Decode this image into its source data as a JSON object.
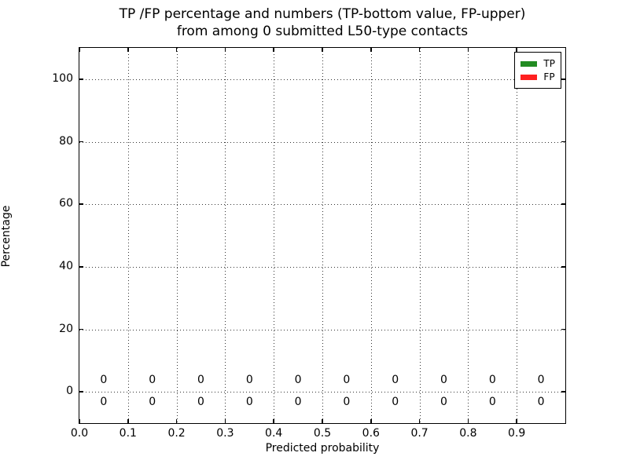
{
  "figure": {
    "background": "#ffffff",
    "title_line1": "TP /FP percentage and numbers (TP-bottom value, FP-upper)",
    "title_line2": "from among 0 submitted L50-type contacts"
  },
  "chart_data": {
    "type": "bar",
    "title": "TP /FP percentage and numbers (TP-bottom value, FP-upper) from among 0 submitted L50-type contacts",
    "xlabel": "Predicted probability",
    "ylabel": "Percentage",
    "xlim": [
      0.0,
      1.0
    ],
    "ylim": [
      -10,
      110
    ],
    "grid": true,
    "grid_style": "dotted",
    "legend_position": "upper right",
    "frame_color": "#000000",
    "text_color": "#000000",
    "x_ticks": [
      {
        "value": 0.0,
        "label": "0.0"
      },
      {
        "value": 0.1,
        "label": "0.1"
      },
      {
        "value": 0.2,
        "label": "0.2"
      },
      {
        "value": 0.3,
        "label": "0.3"
      },
      {
        "value": 0.4,
        "label": "0.4"
      },
      {
        "value": 0.5,
        "label": "0.5"
      },
      {
        "value": 0.6,
        "label": "0.6"
      },
      {
        "value": 0.7,
        "label": "0.7"
      },
      {
        "value": 0.8,
        "label": "0.8"
      },
      {
        "value": 0.9,
        "label": "0.9"
      }
    ],
    "y_ticks": [
      {
        "value": 0,
        "label": "0"
      },
      {
        "value": 20,
        "label": "20"
      },
      {
        "value": 40,
        "label": "40"
      },
      {
        "value": 60,
        "label": "60"
      },
      {
        "value": 80,
        "label": "80"
      },
      {
        "value": 100,
        "label": "100"
      }
    ],
    "categories": [
      0.05,
      0.15,
      0.25,
      0.35,
      0.45,
      0.55,
      0.65,
      0.75,
      0.85,
      0.95
    ],
    "series": [
      {
        "name": "TP",
        "color": "#228b22",
        "values": [
          0,
          0,
          0,
          0,
          0,
          0,
          0,
          0,
          0,
          0
        ]
      },
      {
        "name": "FP",
        "color": "#ff2020",
        "values": [
          0,
          0,
          0,
          0,
          0,
          0,
          0,
          0,
          0,
          0
        ]
      }
    ],
    "legend": [
      {
        "name": "TP",
        "color": "#228b22"
      },
      {
        "name": "FP",
        "color": "#ff2020"
      }
    ],
    "annotation_rows": [
      {
        "name": "fp-upper-counts",
        "y_value": 3.75,
        "labels": [
          "0",
          "0",
          "0",
          "0",
          "0",
          "0",
          "0",
          "0",
          "0",
          "0"
        ]
      },
      {
        "name": "tp-bottom-counts",
        "y_value": -3.25,
        "labels": [
          "0",
          "0",
          "0",
          "0",
          "0",
          "0",
          "0",
          "0",
          "0",
          "0"
        ]
      }
    ]
  }
}
